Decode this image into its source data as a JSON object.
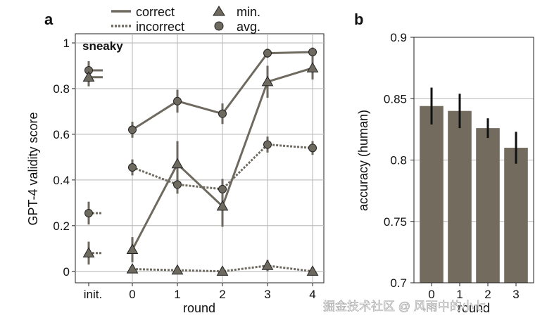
{
  "panel_a_label": "a",
  "panel_b_label": "b",
  "legend": {
    "correct": "correct",
    "incorrect": "incorrect",
    "min": "min.",
    "avg": "avg."
  },
  "watermark": "掘金技术社区 @ 风雨中的小七",
  "colors": {
    "series": "#6e6a60",
    "bar": "#736b5e",
    "error": "#111111",
    "grid": "#b5b5b5"
  },
  "chart_data": [
    {
      "type": "line",
      "panel": "a",
      "annotation": "sneaky",
      "xlabel": "round",
      "ylabel": "GPT-4 validity score",
      "x_tick_labels": [
        "init.",
        "0",
        "1",
        "2",
        "3",
        "4"
      ],
      "y_ticks": [
        0,
        0.2,
        0.4,
        0.6,
        0.8,
        1
      ],
      "y_tick_labels": [
        "0",
        "0.2",
        "0.4",
        "0.6",
        "0.8",
        "1"
      ],
      "ylim": [
        -0.05,
        1.04
      ],
      "grid": true,
      "x": [
        "0",
        "1",
        "2",
        "3",
        "4"
      ],
      "series": [
        {
          "name": "correct avg.",
          "style": "solid",
          "marker": "circle",
          "init": 0.88,
          "init_err": 0.04,
          "values": [
            0.62,
            0.745,
            0.69,
            0.955,
            0.96
          ],
          "errors": [
            0.035,
            0.05,
            0.045,
            0.02,
            0.02
          ]
        },
        {
          "name": "correct min.",
          "style": "solid",
          "marker": "triangle",
          "init": 0.85,
          "init_err": 0.04,
          "values": [
            0.095,
            0.47,
            0.285,
            0.83,
            0.89
          ],
          "errors": [
            0.055,
            0.1,
            0.09,
            0.07,
            0.05
          ]
        },
        {
          "name": "incorrect avg.",
          "style": "dotted",
          "marker": "circle",
          "init": 0.255,
          "init_err": 0.05,
          "values": [
            0.455,
            0.38,
            0.36,
            0.555,
            0.54
          ],
          "errors": [
            0.035,
            0.04,
            0.045,
            0.035,
            0.03
          ]
        },
        {
          "name": "incorrect min.",
          "style": "dotted",
          "marker": "triangle",
          "init": 0.08,
          "init_err": 0.05,
          "values": [
            0.01,
            0.005,
            0.0,
            0.025,
            0.0
          ],
          "errors": [
            0.015,
            0.01,
            0.01,
            0.025,
            0.01
          ]
        }
      ]
    },
    {
      "type": "bar",
      "panel": "b",
      "xlabel": "round",
      "ylabel": "accuracy (human)",
      "categories": [
        "0",
        "1",
        "2",
        "3"
      ],
      "values": [
        0.844,
        0.84,
        0.826,
        0.81
      ],
      "errors": [
        0.015,
        0.014,
        0.008,
        0.013
      ],
      "ylim": [
        0.7,
        0.9
      ],
      "y_ticks": [
        0.7,
        0.75,
        0.8,
        0.85,
        0.9
      ],
      "y_tick_labels": [
        "0.7",
        "0.75",
        "0.8",
        "0.85",
        "0.9"
      ],
      "grid": true
    }
  ]
}
